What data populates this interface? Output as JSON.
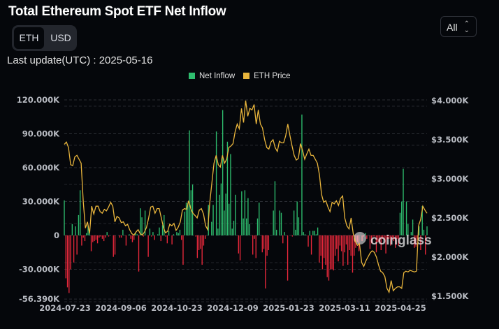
{
  "title": "Total Ethereum Spot ETF Net Inflow",
  "toggle": {
    "options": [
      "ETH",
      "USD"
    ],
    "selected": "ETH"
  },
  "last_update": "Last update(UTC) : 2025-05-16",
  "range_select": {
    "value": "All"
  },
  "watermark": "coinglass",
  "colors": {
    "inflow_pos": "#2ebd6e",
    "inflow_neg": "#e8283b",
    "price": "#e9b53c"
  },
  "chart_data": {
    "type": "bar+line",
    "title": "Total Ethereum Spot ETF Net Inflow",
    "legend": [
      {
        "name": "Net Inflow",
        "color": "#2ebd6e"
      },
      {
        "name": "ETH Price",
        "color": "#e9b53c"
      }
    ],
    "legend_position": "top-center",
    "x_ticks": [
      "2024-07-23",
      "2024-09-06",
      "2024-10-23",
      "2024-12-09",
      "2025-01-23",
      "2025-03-11",
      "2025-04-25"
    ],
    "y_left": {
      "ticks": [
        "120.000K",
        "90.000K",
        "60.000K",
        "30.000K",
        "0",
        "-30.000K",
        "-56.390K"
      ],
      "tick_values": [
        120,
        90,
        60,
        30,
        0,
        -30,
        -56.39
      ],
      "range": [
        -56.39,
        120
      ],
      "unit": "K ETH"
    },
    "y_right": {
      "ticks": [
        "$4.000K",
        "$3.500K",
        "$3.000K",
        "$2.500K",
        "$2.000K",
        "$1.500K"
      ],
      "tick_values": [
        4000,
        3500,
        3000,
        2500,
        2000,
        1500
      ],
      "range": [
        1500,
        4000
      ],
      "unit": "USD"
    },
    "net_inflow_k": [
      31,
      -38,
      -46,
      -51,
      -30,
      10,
      -24,
      8,
      -17,
      18,
      40,
      -9,
      -2,
      -5,
      2,
      9,
      4,
      -14,
      -6,
      -5,
      -4,
      -7,
      -2,
      -1,
      -3,
      -5,
      -2,
      3,
      -1,
      0,
      0,
      -19,
      -17,
      0,
      0,
      -2,
      -2,
      5,
      0,
      -9,
      0,
      1,
      -3,
      -6,
      -4,
      2,
      1,
      -32,
      24,
      16,
      -1,
      22,
      0,
      -19,
      6,
      -1,
      3,
      -4,
      0,
      1,
      7,
      -5,
      9,
      18,
      -1,
      -7,
      4,
      0,
      -8,
      1,
      0,
      3,
      2,
      5,
      -4,
      -26,
      21,
      29,
      29,
      93,
      40,
      45,
      0,
      -1,
      -20,
      -13,
      -12,
      -26,
      -9,
      -3,
      0,
      27,
      0,
      12,
      27,
      0,
      92,
      6,
      36,
      46,
      111,
      22,
      37,
      83,
      28,
      72,
      6,
      13,
      36,
      0,
      -16,
      -22,
      39,
      15,
      40,
      15,
      33,
      10,
      0,
      -17,
      -3,
      -20,
      15,
      29,
      0,
      -15,
      -12,
      -47,
      -18,
      -13,
      0,
      0,
      22,
      48,
      5,
      0,
      22,
      20,
      -7,
      3,
      0,
      -40,
      0,
      0,
      -1,
      22,
      5,
      30,
      16,
      0,
      107,
      3,
      1,
      0,
      -10,
      4,
      -17,
      4,
      4,
      1,
      7,
      -24,
      -18,
      -30,
      -20,
      -26,
      -37,
      -40,
      -30,
      -30,
      -31,
      -18,
      -12,
      -23,
      -9,
      -14,
      -27,
      -15,
      -8,
      -26,
      -13,
      -18,
      -33,
      -18,
      -11,
      -6,
      -14,
      0,
      -5,
      -1,
      2,
      -3,
      0,
      -12,
      -7,
      -1,
      -1,
      -15,
      -6,
      -6,
      -13,
      -3,
      -4,
      -16,
      -3,
      -3,
      -9,
      -3,
      -5,
      -11,
      -3,
      -9,
      20,
      30,
      59,
      0,
      30,
      10,
      0,
      3,
      14,
      -11,
      -10,
      -4,
      8,
      -13,
      26,
      5,
      -17,
      8
    ],
    "eth_price_usd": [
      3440,
      3470,
      3400,
      3180,
      3170,
      3280,
      3300,
      3250,
      3200,
      2700,
      2370,
      2450,
      2300,
      2650,
      2550,
      2650,
      2650,
      2580,
      2560,
      2610,
      2590,
      2640,
      2700,
      2650,
      2450,
      2520,
      2500,
      2440,
      2450,
      2400,
      2420,
      2350,
      2300,
      2280,
      2320,
      2350,
      2300,
      2280,
      2320,
      2380,
      2500,
      2640,
      2650,
      2560,
      2620,
      2620,
      2500,
      2380,
      2310,
      2330,
      2420,
      2400,
      2430,
      2340,
      2380,
      2450,
      2600,
      2620,
      2610,
      2720,
      2620,
      2560,
      2530,
      2500,
      2600,
      2620,
      2550,
      2400,
      2350,
      2700,
      2950,
      3200,
      3300,
      3180,
      3150,
      3300,
      3200,
      3250,
      3400,
      3420,
      3450,
      3600,
      3700,
      3640,
      3900,
      3720,
      4000,
      3800,
      3900,
      3880,
      3950,
      3700,
      3880,
      3700,
      3650,
      3500,
      3400,
      3380,
      3470,
      3500,
      3400,
      3350,
      3480,
      3460,
      3460,
      3550,
      3700,
      3550,
      3420,
      3300,
      3240,
      3260,
      3450,
      3360,
      3250,
      3320,
      3380,
      3300,
      3300,
      3250,
      3200,
      3050,
      2800,
      2700,
      2720,
      2640,
      2580,
      2700,
      2680,
      2720,
      2660,
      2750,
      2780,
      2500,
      2400,
      2360,
      2500,
      2300,
      2200,
      2150,
      2170,
      1930,
      1880,
      1950,
      2000,
      2050,
      2080,
      2060,
      2000,
      1900,
      1820,
      1800,
      1750,
      1600,
      1550,
      1700,
      1570,
      1600,
      1620,
      1620,
      1600,
      1800,
      1820,
      1810,
      1830,
      1820,
      1810,
      1820,
      2400,
      2480,
      2650,
      2600,
      2560
    ]
  }
}
